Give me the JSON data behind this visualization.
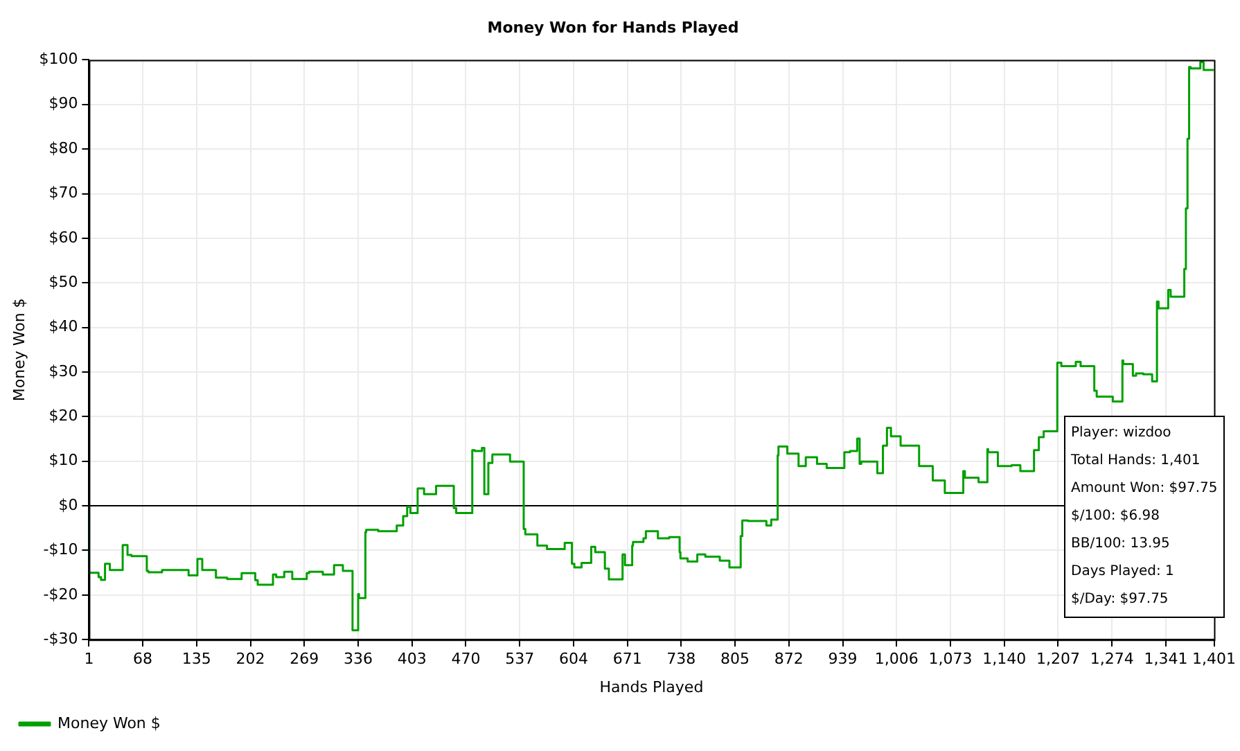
{
  "chart_data": {
    "type": "step",
    "title": "Money Won for Hands Played",
    "xlabel": "Hands Played",
    "ylabel": "Money Won $",
    "xlim": [
      1,
      1401
    ],
    "xticks": [
      1,
      68,
      135,
      202,
      269,
      336,
      403,
      470,
      537,
      604,
      671,
      738,
      805,
      872,
      939,
      {
        "value": 1006,
        "label": "1,006"
      },
      {
        "value": 1073,
        "label": "1,073"
      },
      {
        "value": 1140,
        "label": "1,140"
      },
      {
        "value": 1207,
        "label": "1,207"
      },
      {
        "value": 1274,
        "label": "1,274"
      },
      {
        "value": 1341,
        "label": "1,341"
      },
      {
        "value": 1401,
        "label": "1,401"
      }
    ],
    "ylim": [
      -30,
      100
    ],
    "yticks": [
      {
        "value": -30,
        "label": "-$30"
      },
      {
        "value": -20,
        "label": "-$20"
      },
      {
        "value": -10,
        "label": "-$10"
      },
      {
        "value": 0,
        "label": "$0"
      },
      {
        "value": 10,
        "label": "$10"
      },
      {
        "value": 20,
        "label": "$20"
      },
      {
        "value": 30,
        "label": "$30"
      },
      {
        "value": 40,
        "label": "$40"
      },
      {
        "value": 50,
        "label": "$50"
      },
      {
        "value": 60,
        "label": "$60"
      },
      {
        "value": 70,
        "label": "$70"
      },
      {
        "value": 80,
        "label": "$80"
      },
      {
        "value": 90,
        "label": "$90"
      },
      {
        "value": 100,
        "label": "$100"
      }
    ],
    "grid": true,
    "legend": "bottom left",
    "ref_lines": [
      {
        "axis": "y",
        "value": 0,
        "color": "#000000"
      }
    ],
    "annotations": [
      "Player: wizdoo",
      "Total Hands: 1,401",
      "Amount Won: $97.75",
      "$/100: $6.98",
      "BB/100: 13.95",
      "Days Played: 1",
      "$/Day: $97.75"
    ],
    "series": [
      {
        "name": "Money Won $",
        "color": "#00a000",
        "x": [
          1,
          5,
          13,
          16,
          21,
          27,
          43,
          49,
          54,
          73,
          75,
          92,
          125,
          136,
          142,
          159,
          173,
          191,
          194,
          208,
          211,
          230,
          234,
          244,
          254,
          272,
          275,
          292,
          306,
          317,
          329,
          330,
          336,
          337,
          345,
          346,
          361,
          384,
          392,
          397,
          401,
          410,
          418,
          433,
          455,
          458,
          464,
          478,
          481,
          490,
          493,
          498,
          503,
          525,
          542,
          544,
          559,
          571,
          576,
          593,
          595,
          602,
          605,
          614,
          626,
          631,
          643,
          648,
          653,
          665,
          668,
          677,
          678,
          691,
          694,
          709,
          723,
          736,
          737,
          746,
          758,
          768,
          786,
          798,
          812,
          814,
          821,
          844,
          850,
          858,
          859,
          870,
          884,
          893,
          907,
          919,
          941,
          948,
          957,
          960,
          962,
          982,
          989,
          994,
          999,
          1011,
          1034,
          1051,
          1066,
          1080,
          1089,
          1091,
          1108,
          1119,
          1120,
          1132,
          1149,
          1160,
          1177,
          1183,
          1189,
          1206,
          1211,
          1229,
          1235,
          1252,
          1255,
          1275,
          1287,
          1288,
          1300,
          1304,
          1313,
          1324,
          1330,
          1332,
          1344,
          1347,
          1364,
          1366,
          1368,
          1370,
          1372,
          1384,
          1388,
          1401
        ],
        "values": [
          0,
          -15,
          -15,
          -16,
          -16.6,
          -13,
          -14.4,
          -8.8,
          -11,
          -11.3,
          -14.6,
          -14.9,
          -14.4,
          -15.6,
          -11.9,
          -14.4,
          -16.1,
          -16.4,
          -15.1,
          -15.1,
          -16.7,
          -17.7,
          -15.4,
          -16,
          -14.8,
          -16.4,
          -15.1,
          -14.8,
          -15.4,
          -13.3,
          -14.6,
          -27.9,
          -27.9,
          -19.8,
          -20.7,
          -5.9,
          -5.4,
          -5.7,
          -4.4,
          -2.3,
          -0.2,
          -1.6,
          3.9,
          2.6,
          4.5,
          -0.5,
          -1.6,
          -1.6,
          12.5,
          12.3,
          13,
          2.6,
          9.6,
          11.5,
          9.9,
          -5.2,
          -6.4,
          -8.9,
          -9.7,
          -9.7,
          -8.3,
          -8.3,
          -13,
          -13.8,
          -12.8,
          -9.2,
          -10.4,
          -14.1,
          -16.5,
          -16.5,
          -10.9,
          -13.3,
          -8.9,
          -8.1,
          -7.3,
          -5.7,
          -7.3,
          -7,
          -10.4,
          -11.8,
          -12.5,
          -10.9,
          -11.4,
          -12.3,
          -13.8,
          -6.8,
          -3.3,
          -3.4,
          -4.4,
          -3.1,
          11.3,
          13.3,
          11.7,
          8.9,
          10.9,
          9.4,
          8.5,
          12,
          12.3,
          15.1,
          9.4,
          9.9,
          7.3,
          13.5,
          17.5,
          15.6,
          13.5,
          8.9,
          5.7,
          2.9,
          2.9,
          7.8,
          6.3,
          5.3,
          12.7,
          12,
          8.9,
          9.1,
          7.8,
          12.5,
          15.4,
          16.7,
          32.1,
          31.3,
          32.3,
          31.3,
          25.8,
          24.5,
          23.4,
          32.6,
          31.8,
          29.2,
          29.7,
          29.5,
          27.9,
          45.8,
          44.3,
          48.4,
          46.9,
          53.1,
          66.7,
          82.3,
          98.4,
          98.1,
          99.5,
          97.75
        ]
      }
    ]
  }
}
